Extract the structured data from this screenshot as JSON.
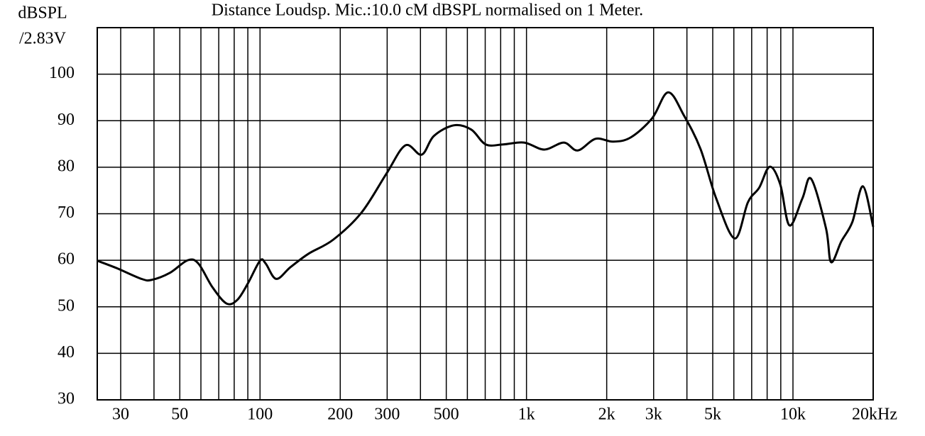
{
  "chart_data": {
    "type": "line",
    "title": "Distance Loudsp. Mic.:10.0 cM dBSPL normalised on 1 Meter.",
    "y_label": [
      "dBSPL",
      "/2.83V"
    ],
    "x": [
      24.5,
      29,
      35.9,
      39.3,
      45.9,
      53.5,
      58.7,
      66.3,
      74.9,
      82.2,
      90,
      100,
      105,
      115,
      130,
      152,
      188,
      240,
      298,
      351,
      404,
      449,
      533,
      620,
      703,
      817,
      980,
      1166,
      1380,
      1557,
      1815,
      2112,
      2460,
      2960,
      3400,
      3900,
      4500,
      5150,
      6050,
      6780,
      7470,
      8180,
      8960,
      9700,
      10850,
      11700,
      13300,
      13900,
      15200,
      16700,
      18300,
      20000
    ],
    "values": [
      59.9,
      58.3,
      56,
      55.8,
      57.3,
      60,
      59.3,
      54.2,
      50.7,
      51.5,
      55,
      59.9,
      59.3,
      56,
      58.5,
      61.4,
      64.4,
      70.2,
      78.6,
      84.7,
      82.7,
      86.7,
      89,
      88.1,
      84.9,
      84.9,
      85.3,
      83.8,
      85.3,
      83.6,
      86.1,
      85.5,
      86.4,
      90.5,
      96.1,
      91.1,
      83.9,
      73.3,
      64.7,
      72.5,
      75.6,
      80.1,
      76.3,
      67.5,
      73.3,
      77.5,
      66.9,
      59.6,
      64.1,
      68.2,
      75.9,
      67.2
    ],
    "color": "#000000",
    "x_scale": "log",
    "xlim": [
      24.5,
      20000
    ],
    "xticks": [
      30,
      50,
      100,
      200,
      300,
      500,
      {
        "value": 1000,
        "label": "1k"
      },
      {
        "value": 2000,
        "label": "2k"
      },
      {
        "value": 3000,
        "label": "3k"
      },
      {
        "value": 5000,
        "label": "5k"
      },
      {
        "value": 10000,
        "label": "10k"
      },
      {
        "value": 20000,
        "label": "20kHz"
      }
    ],
    "xminor": [
      40,
      60,
      70,
      80,
      90,
      400,
      600,
      700,
      800,
      900,
      4000,
      6000,
      7000,
      8000,
      9000
    ],
    "ylim": [
      30,
      110
    ],
    "yticks": [
      30,
      40,
      50,
      60,
      70,
      80,
      90,
      100
    ],
    "grid": true
  }
}
